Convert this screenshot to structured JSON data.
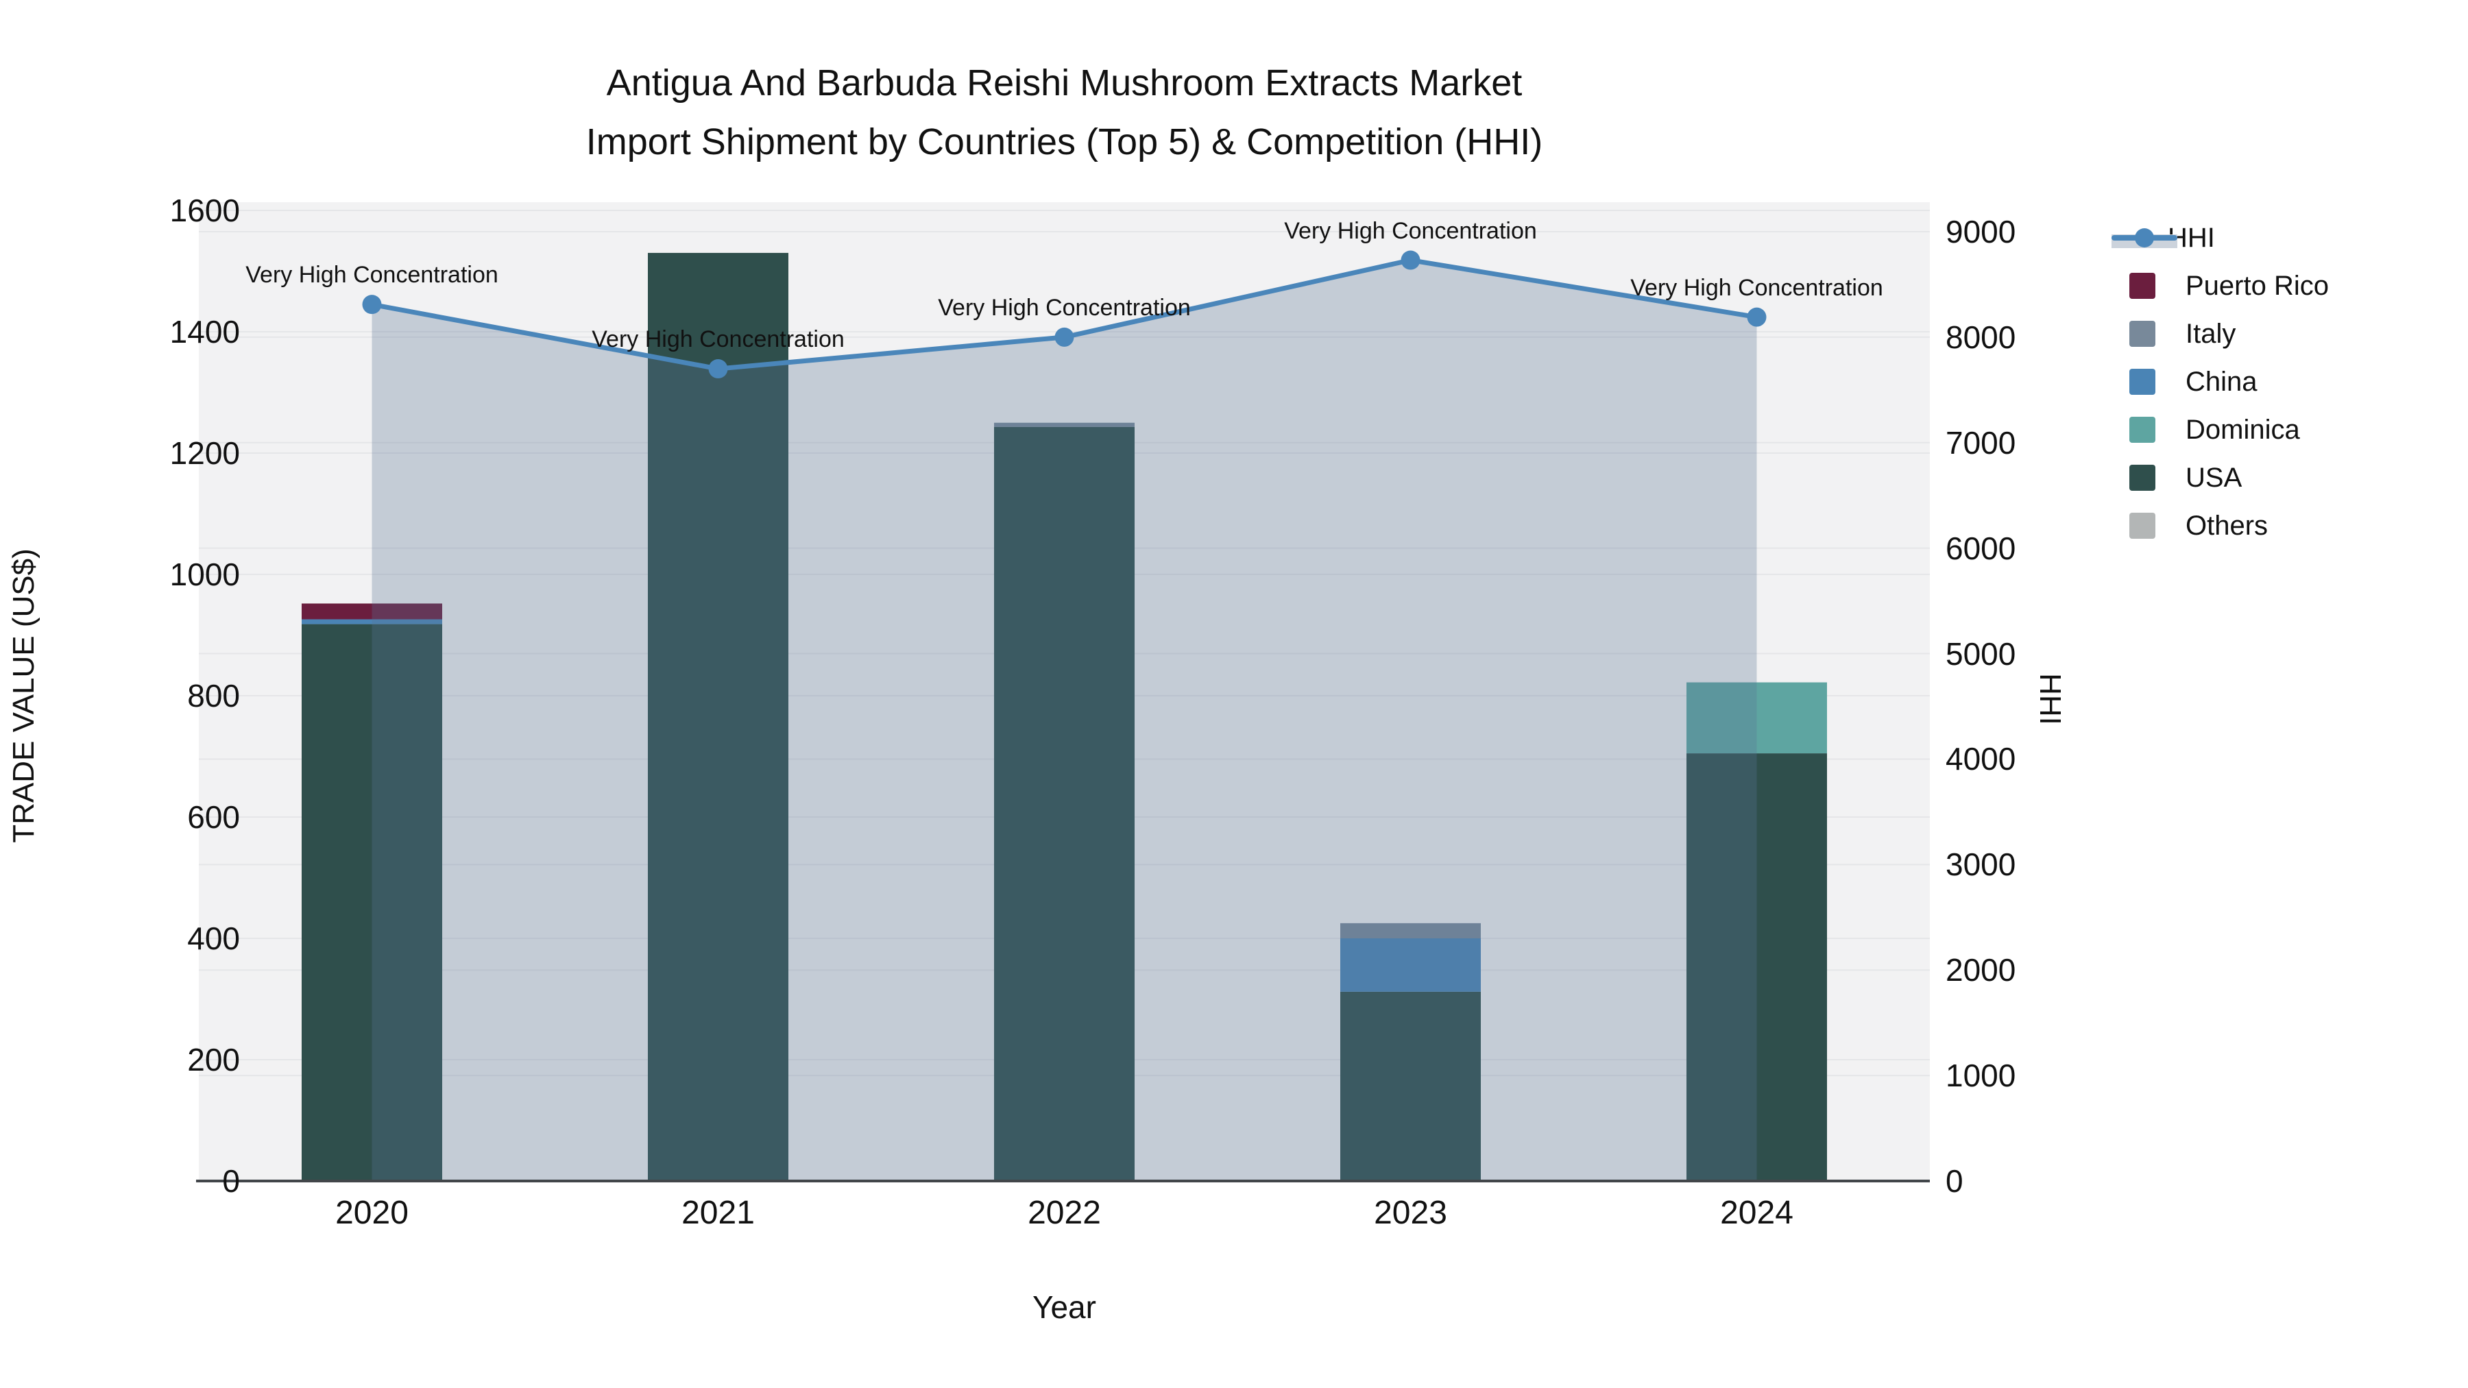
{
  "title": {
    "line1": "Antigua And Barbuda Reishi Mushroom Extracts Market",
    "line2": "Import Shipment by Countries (Top 5) & Competition (HHI)"
  },
  "axes": {
    "x": {
      "title": "Year",
      "categories": [
        "2020",
        "2021",
        "2022",
        "2023",
        "2024"
      ]
    },
    "y_left": {
      "title": "TRADE VALUE (US$)",
      "tick_labels": [
        "0",
        "200",
        "400",
        "600",
        "800",
        "1000",
        "1200",
        "1400",
        "1600"
      ],
      "min": 0,
      "max": 1600
    },
    "y_right": {
      "title": "HHI",
      "tick_labels": [
        "0",
        "1000",
        "2000",
        "3000",
        "4000",
        "5000",
        "6000",
        "7000",
        "8000",
        "9000"
      ],
      "min": 0,
      "max": 9000
    }
  },
  "annotations": [
    "Very High Concentration",
    "Very High Concentration",
    "Very High Concentration",
    "Very High Concentration",
    "Very High Concentration"
  ],
  "legend": {
    "items": [
      {
        "label": "HHI",
        "type": "line",
        "color": "#4a86ba"
      },
      {
        "label": "Puerto Rico",
        "type": "box",
        "color": "#6b1e3e"
      },
      {
        "label": "Italy",
        "type": "box",
        "color": "#78899a"
      },
      {
        "label": "China",
        "type": "box",
        "color": "#4a84b5"
      },
      {
        "label": "Dominica",
        "type": "box",
        "color": "#5ea5a1"
      },
      {
        "label": "USA",
        "type": "box",
        "color": "#2f4f4c"
      },
      {
        "label": "Others",
        "type": "box",
        "color": "#b3b6b6"
      }
    ]
  },
  "chart_data": {
    "type": "bar+line",
    "title": "Antigua And Barbuda Reishi Mushroom Extracts Market Import Shipment by Countries (Top 5) & Competition (HHI)",
    "categories": [
      "2020",
      "2021",
      "2022",
      "2023",
      "2024"
    ],
    "bar_unit": "TRADE VALUE (US$)",
    "stack_order": [
      "USA",
      "China",
      "Italy",
      "Puerto Rico",
      "Dominica",
      "Others"
    ],
    "series": [
      {
        "name": "Puerto Rico",
        "color": "#6b1e3e",
        "values": [
          26,
          0,
          0,
          0,
          0
        ]
      },
      {
        "name": "Italy",
        "color": "#78899a",
        "values": [
          0,
          0,
          7,
          25,
          0
        ]
      },
      {
        "name": "China",
        "color": "#4a84b5",
        "values": [
          8,
          0,
          0,
          88,
          0
        ]
      },
      {
        "name": "Dominica",
        "color": "#5ea5a1",
        "values": [
          0,
          0,
          0,
          0,
          117
        ]
      },
      {
        "name": "USA",
        "color": "#2f4f4c",
        "values": [
          918,
          1530,
          1243,
          312,
          705
        ]
      },
      {
        "name": "Others",
        "color": "#b3b6b6",
        "values": [
          0,
          0,
          0,
          0,
          0
        ]
      }
    ],
    "line_series": {
      "name": "HHI",
      "color": "#4a86ba",
      "area_fill": "rgba(90,115,150,0.30)",
      "values": [
        8310,
        7700,
        8000,
        8730,
        8190
      ],
      "axis": "right"
    },
    "y_left_range": [
      0,
      1600
    ],
    "y_right_range": [
      0,
      9000
    ],
    "grid": true,
    "legend_position": "right",
    "plot_bg": "#f2f2f3",
    "grid_color": "#e5e6e8",
    "axis_line_color": "#42464a"
  }
}
